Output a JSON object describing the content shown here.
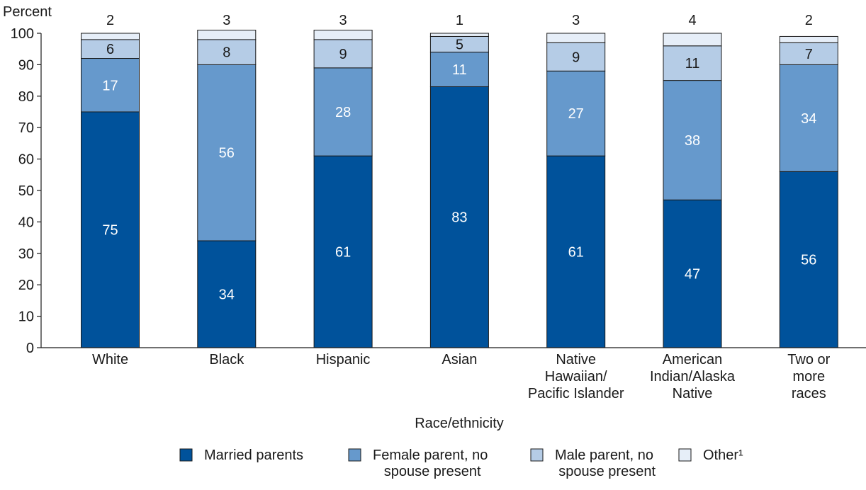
{
  "chart_data": {
    "type": "bar",
    "stacked": true,
    "title": "",
    "xlabel": "Race/ethnicity",
    "ylabel": "Percent",
    "ylim": [
      0,
      100
    ],
    "yticks": [
      "0",
      "10",
      "20",
      "30",
      "40",
      "50",
      "60",
      "70",
      "80",
      "90",
      "100"
    ],
    "grid": false,
    "legend_position": "bottom",
    "categories": [
      [
        "White"
      ],
      [
        "Black"
      ],
      [
        "Hispanic"
      ],
      [
        "Asian"
      ],
      [
        "Native",
        "Hawaiian/",
        "Pacific Islander"
      ],
      [
        "American",
        "Indian/Alaska",
        "Native"
      ],
      [
        "Two or",
        "more",
        "races"
      ]
    ],
    "series": [
      {
        "name": "Married parents",
        "values": [
          75,
          34,
          61,
          83,
          61,
          47,
          56
        ],
        "labels": [
          "75",
          "34",
          "61",
          "83",
          "61",
          "47",
          "56"
        ],
        "color": "#00529b",
        "label_color": "#ffffff"
      },
      {
        "name": "Female parent, no spouse present",
        "legend_lines": [
          "Female parent, no",
          "spouse present"
        ],
        "values": [
          17,
          56,
          28,
          11,
          27,
          38,
          34
        ],
        "labels": [
          "17",
          "56",
          "28",
          "11",
          "27",
          "38",
          "34"
        ],
        "color": "#6699cc",
        "label_color": "#ffffff"
      },
      {
        "name": "Male parent, no spouse present",
        "legend_lines": [
          "Male parent, no",
          "spouse present"
        ],
        "values": [
          6,
          8,
          9,
          5,
          9,
          11,
          7
        ],
        "labels": [
          "6",
          "8",
          "9",
          "5",
          "9",
          "11",
          "7"
        ],
        "color": "#b5cce6",
        "label_color": "#1a1a1a"
      },
      {
        "name": "Other¹",
        "legend_lines": [
          "Other¹"
        ],
        "values": [
          2,
          3,
          3,
          1,
          3,
          4,
          2
        ],
        "labels": [
          "2",
          "3",
          "3",
          "1",
          "3",
          "4",
          "2"
        ],
        "color": "#e6eef8",
        "label_color": "#1a1a1a",
        "labels_above": true
      }
    ]
  }
}
